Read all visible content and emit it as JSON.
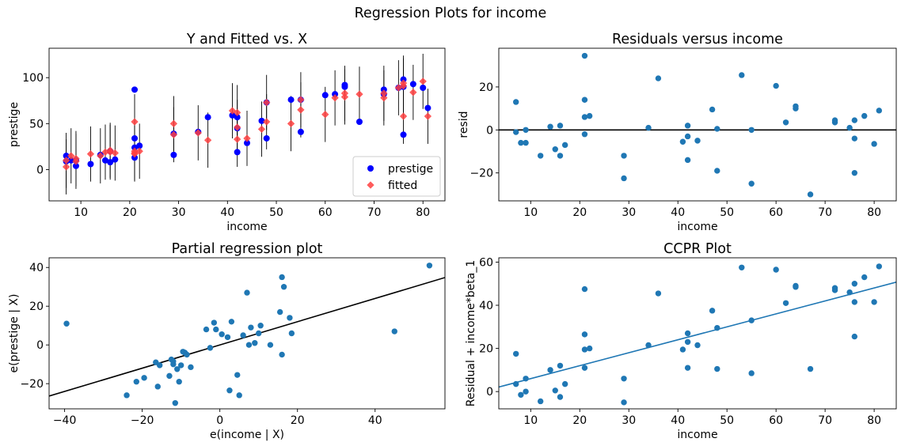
{
  "figure": {
    "suptitle": "Regression Plots for income"
  },
  "colors": {
    "blue": "#0000ff",
    "red": "#ff4040",
    "mpl_blue": "#1f77b4",
    "black": "#000000"
  },
  "chart_data": [
    {
      "id": "yfit",
      "type": "scatter",
      "title": "Y and Fitted vs. X",
      "xlabel": "income",
      "ylabel": "prestige",
      "xlim": [
        3.5,
        84.5
      ],
      "ylim": [
        -34,
        132
      ],
      "xticks": [
        10,
        20,
        30,
        40,
        50,
        60,
        70,
        80
      ],
      "yticks": [
        0,
        50,
        100
      ],
      "legend": {
        "placement": "bottom-right",
        "entries": [
          "prestige",
          "fitted"
        ]
      },
      "series": [
        {
          "name": "prestige",
          "marker": "circle",
          "color": "#0000ff",
          "x": [
            7,
            7,
            8,
            9,
            9,
            12,
            14,
            15,
            16,
            16,
            17,
            21,
            21,
            21,
            21,
            22,
            29,
            29,
            34,
            36,
            41,
            42,
            42,
            42,
            44,
            47,
            48,
            48,
            53,
            55,
            55,
            60,
            62,
            64,
            64,
            67,
            72,
            72,
            75,
            76,
            76,
            76,
            78,
            80,
            81
          ],
          "y": [
            15,
            9,
            10,
            10,
            4,
            6,
            16,
            10,
            20,
            8,
            11,
            87,
            34,
            24,
            13,
            26,
            16,
            39,
            41,
            57,
            59,
            57,
            45,
            19,
            29,
            53,
            73,
            34,
            76,
            76,
            41,
            81,
            82,
            92,
            90,
            52,
            87,
            82,
            89,
            98,
            90,
            38,
            93,
            89,
            67
          ]
        },
        {
          "name": "fitted",
          "marker": "diamond",
          "color": "#ff4040",
          "x": [
            7,
            7,
            8,
            9,
            9,
            12,
            14,
            15,
            16,
            16,
            17,
            21,
            21,
            21,
            21,
            22,
            29,
            29,
            34,
            36,
            41,
            42,
            42,
            42,
            44,
            47,
            48,
            48,
            53,
            55,
            55,
            60,
            62,
            64,
            64,
            67,
            72,
            72,
            75,
            76,
            76,
            76,
            78,
            80,
            81
          ],
          "y": [
            3,
            10,
            15,
            9,
            12,
            17,
            15,
            19,
            19,
            21,
            18,
            52,
            20,
            17,
            18,
            20,
            50,
            38,
            40,
            32,
            64,
            62,
            46,
            33,
            34,
            44,
            52,
            73,
            50,
            65,
            76,
            60,
            78,
            79,
            83,
            82,
            78,
            83,
            89,
            91,
            94,
            58,
            84,
            96,
            58
          ]
        }
      ],
      "errorbars_halfwidth": 30
    },
    {
      "id": "resid",
      "type": "scatter",
      "title": "Residuals versus income",
      "xlabel": "income",
      "ylabel": "resid",
      "xlim": [
        3.5,
        84.5
      ],
      "ylim": [
        -33,
        38
      ],
      "xticks": [
        10,
        20,
        30,
        40,
        50,
        60,
        70,
        80
      ],
      "yticks": [
        -20,
        0,
        20
      ],
      "hline": 0,
      "series": [
        {
          "color": "#1f77b4",
          "x": [
            7,
            7,
            8,
            9,
            9,
            12,
            14,
            15,
            16,
            16,
            17,
            21,
            21,
            21,
            21,
            22,
            29,
            29,
            34,
            36,
            41,
            42,
            42,
            42,
            44,
            47,
            48,
            48,
            53,
            55,
            55,
            60,
            62,
            64,
            64,
            67,
            72,
            72,
            75,
            76,
            76,
            76,
            78,
            80,
            81
          ],
          "y": [
            13,
            -1,
            -6,
            -6,
            0,
            -12,
            1.5,
            -9,
            2,
            -12,
            -7,
            34.5,
            14,
            6,
            -2,
            6.5,
            -12,
            -22.5,
            1,
            24,
            -5.5,
            2,
            -3,
            -14,
            -5,
            9.5,
            0.5,
            -19,
            25.5,
            -25,
            0,
            20.5,
            3.5,
            11,
            10,
            -30,
            4.5,
            3.5,
            1,
            -4,
            4.5,
            -20,
            6.5,
            -6.5,
            9
          ]
        }
      ]
    },
    {
      "id": "partial",
      "type": "scatter",
      "title": "Partial regression plot",
      "xlabel": "e(income | X)",
      "ylabel": "e(prestige | X)",
      "xlim": [
        -44,
        58
      ],
      "ylim": [
        -33,
        45
      ],
      "xticks": [
        -40,
        -20,
        0,
        20,
        40
      ],
      "yticks": [
        -20,
        0,
        20,
        40
      ],
      "fit_line": [
        [
          -44,
          -26.4
        ],
        [
          58,
          34.8
        ]
      ],
      "fit_color": "#000000",
      "series": [
        {
          "color": "#1f77b4",
          "x": [
            -39.5,
            -24,
            -21.5,
            -19.5,
            -16.5,
            -16,
            -15.5,
            -13,
            -12.5,
            -12,
            -12,
            -11.5,
            -11,
            -10.5,
            -10,
            -9.5,
            -9,
            -8.5,
            -7.5,
            -3.5,
            -2.5,
            -1.5,
            -1,
            0.5,
            2,
            2.5,
            3,
            4.5,
            5,
            6,
            7,
            7.5,
            8,
            9,
            10,
            10.5,
            13,
            15.5,
            16,
            16,
            16.5,
            18,
            18.5,
            45,
            54
          ],
          "y": [
            11,
            -26,
            -19,
            -17,
            -9,
            -21.5,
            -10.5,
            -16,
            -7.5,
            -10,
            -8.5,
            -30,
            -12.5,
            -19,
            -10.5,
            -3.5,
            -4,
            -5,
            -11.5,
            8,
            -1.5,
            11.5,
            8,
            5.5,
            4,
            -23.5,
            12,
            -15.5,
            -26,
            5,
            27,
            0,
            9,
            1,
            6,
            10,
            0,
            17,
            35,
            -5,
            30,
            14,
            6,
            7,
            41
          ]
        }
      ]
    },
    {
      "id": "ccpr",
      "type": "scatter",
      "title": "CCPR Plot",
      "xlabel": "income",
      "ylabel": "Residual + income*beta_1",
      "xlim": [
        3.5,
        84.5
      ],
      "ylim": [
        -8,
        62
      ],
      "xticks": [
        10,
        20,
        30,
        40,
        50,
        60,
        70,
        80
      ],
      "yticks": [
        0,
        20,
        40,
        60
      ],
      "fit_line": [
        [
          3.5,
          2.1
        ],
        [
          84.5,
          50.7
        ]
      ],
      "fit_color": "#1f77b4",
      "series": [
        {
          "color": "#1f77b4",
          "x": [
            7,
            7,
            8,
            9,
            9,
            12,
            14,
            15,
            16,
            16,
            17,
            21,
            21,
            21,
            21,
            22,
            29,
            29,
            34,
            36,
            41,
            42,
            42,
            42,
            44,
            47,
            48,
            48,
            53,
            55,
            55,
            60,
            62,
            64,
            64,
            67,
            72,
            72,
            75,
            76,
            76,
            76,
            78,
            80,
            81
          ],
          "y": [
            17.5,
            3.5,
            -1.5,
            0,
            6,
            -4.5,
            10,
            0.5,
            12,
            -2.5,
            3.5,
            47.5,
            26.5,
            19.5,
            11,
            20,
            6,
            -5,
            21.5,
            45.5,
            19.5,
            27,
            23,
            11,
            21.5,
            37.5,
            29.5,
            10.5,
            57.5,
            8.5,
            33,
            56.5,
            41,
            49,
            48.5,
            10.5,
            48,
            47,
            46,
            50,
            41.5,
            25.5,
            53,
            41.5,
            58
          ]
        }
      ]
    }
  ]
}
